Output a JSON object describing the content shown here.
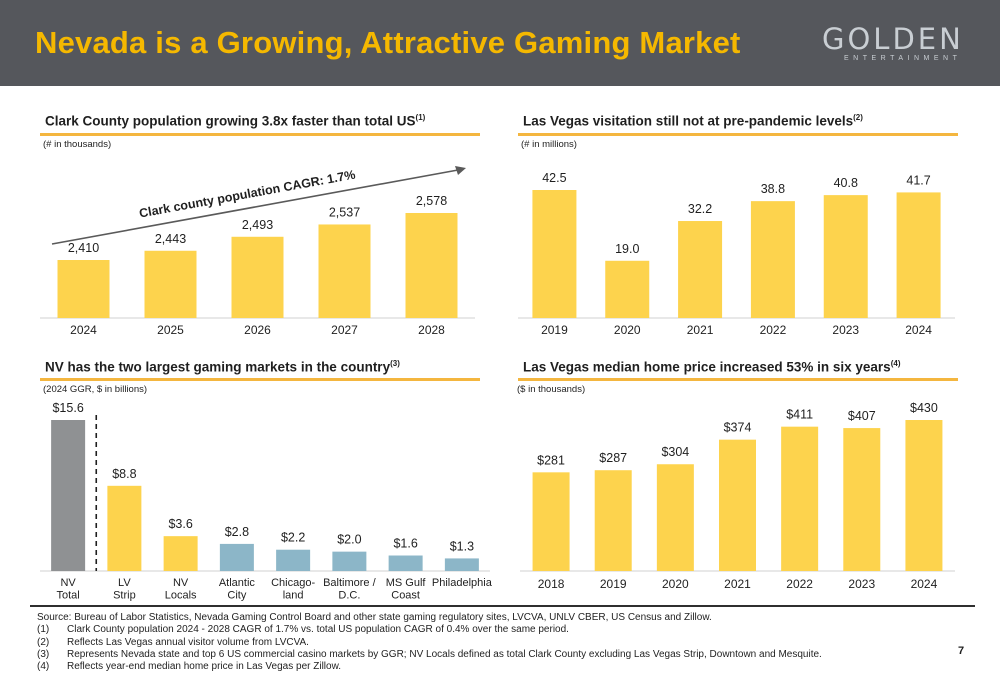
{
  "header": {
    "title": "Nevada is a Growing, Attractive Gaming Market"
  },
  "logo": {
    "main": "GOLDEN",
    "sub": "ENTERTAINMENT"
  },
  "colors": {
    "bar": "#fdd34d",
    "gray_bar": "#8f9193",
    "blue_bar": "#8cb6c8",
    "accent": "#f4b63f",
    "title": "#f5b800",
    "header_bg": "#55575c"
  },
  "panels": {
    "tl": {
      "title": "Clark County population growing 3.8x faster than total US",
      "title_sup": "(1)",
      "unit": "(# in thousands)"
    },
    "tr": {
      "title": "Las Vegas visitation still not at pre-pandemic levels",
      "title_sup": "(2)",
      "unit": "(# in millions)"
    },
    "bl": {
      "title": "NV has the two largest gaming markets in the country",
      "title_sup": "(3)",
      "unit": "(2024 GGR, $ in billions)"
    },
    "br": {
      "title": "Las Vegas median home price increased 53% in six years",
      "title_sup": "(4)",
      "unit": "($ in thousands)"
    }
  },
  "chart_data": [
    {
      "type": "bar",
      "categories": [
        "2024",
        "2025",
        "2026",
        "2027",
        "2028"
      ],
      "values": [
        2410,
        2443,
        2493,
        2537,
        2578
      ],
      "labels": [
        "2,410",
        "2,443",
        "2,493",
        "2,537",
        "2,578"
      ],
      "annotation": "Clark county population CAGR: 1.7%"
    },
    {
      "type": "bar",
      "categories": [
        "2019",
        "2020",
        "2021",
        "2022",
        "2023",
        "2024"
      ],
      "values": [
        42.5,
        19.0,
        32.2,
        38.8,
        40.8,
        41.7
      ],
      "labels": [
        "42.5",
        "19.0",
        "32.2",
        "38.8",
        "40.8",
        "41.7"
      ]
    },
    {
      "type": "bar",
      "categories": [
        "NV\nTotal",
        "LV\nStrip",
        "NV\nLocals",
        "Atlantic\nCity",
        "Chicago-\nland",
        "Baltimore /\nD.C.",
        "MS Gulf\nCoast",
        "Philadelphia"
      ],
      "values": [
        15.6,
        8.8,
        3.6,
        2.8,
        2.2,
        2.0,
        1.6,
        1.3
      ],
      "labels": [
        "$15.6",
        "$8.8",
        "$3.6",
        "$2.8",
        "$2.2",
        "$2.0",
        "$1.6",
        "$1.3"
      ],
      "bar_colors": [
        "gray",
        "yellow",
        "yellow",
        "blue",
        "blue",
        "blue",
        "blue",
        "blue"
      ]
    },
    {
      "type": "bar",
      "categories": [
        "2018",
        "2019",
        "2020",
        "2021",
        "2022",
        "2023",
        "2024"
      ],
      "values": [
        281,
        287,
        304,
        374,
        411,
        407,
        430
      ],
      "labels": [
        "$281",
        "$287",
        "$304",
        "$374",
        "$411",
        "$407",
        "$430"
      ]
    }
  ],
  "footnotes": {
    "source": "Source: Bureau of Labor Statistics, Nevada Gaming Control Board and other state gaming regulatory sites, LVCVA, UNLV CBER, US Census and Zillow.",
    "items": [
      {
        "num": "(1)",
        "text": "Clark County population 2024 - 2028 CAGR of 1.7% vs. total US population CAGR of 0.4% over the same period."
      },
      {
        "num": "(2)",
        "text": "Reflects Las Vegas annual visitor volume from LVCVA."
      },
      {
        "num": "(3)",
        "text": "Represents Nevada state and top 6 US commercial casino markets by GGR; NV Locals defined as total Clark County excluding Las Vegas Strip, Downtown and Mesquite."
      },
      {
        "num": "(4)",
        "text": "Reflects year-end median home price in Las Vegas per Zillow."
      }
    ]
  },
  "page_number": "7"
}
